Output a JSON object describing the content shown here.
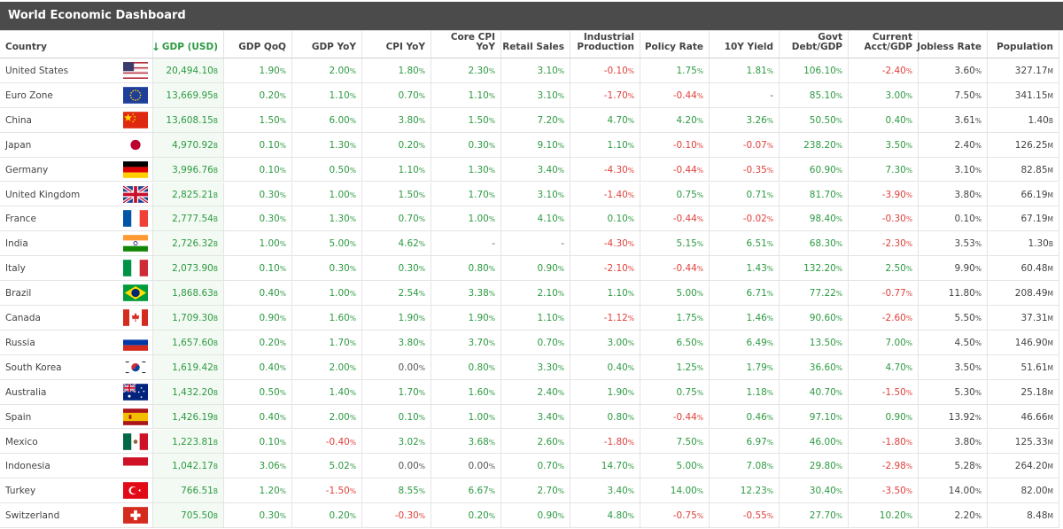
{
  "header": {
    "title": "World Economic Dashboard"
  },
  "table": {
    "columns": [
      [
        "Country"
      ],
      [
        "GDP (USD)"
      ],
      [
        "GDP QoQ"
      ],
      [
        "GDP YoY"
      ],
      [
        "CPI YoY"
      ],
      [
        "Core CPI",
        "YoY"
      ],
      [
        "Retail Sales"
      ],
      [
        "Industrial",
        "Production"
      ],
      [
        "Policy Rate"
      ],
      [
        "10Y Yield"
      ],
      [
        "Govt",
        "Debt/GDP"
      ],
      [
        "Current",
        "Acct/GDP"
      ],
      [
        "Jobless Rate"
      ],
      [
        "Population"
      ]
    ],
    "rows": [
      [
        "United States",
        "20,494.10B",
        "1.90%",
        "2.00%",
        "1.80%",
        "2.30%",
        "3.10%",
        "-0.10%",
        "1.75%",
        "1.81%",
        "106.10%",
        "-2.40%",
        "3.60%",
        "327.17M"
      ],
      [
        "Euro Zone",
        "13,669.95B",
        "0.20%",
        "1.10%",
        "0.70%",
        "1.10%",
        "3.10%",
        "-1.70%",
        "-0.44%",
        "-",
        "85.10%",
        "3.00%",
        "7.50%",
        "341.15M"
      ],
      [
        "China",
        "13,608.15B",
        "1.50%",
        "6.00%",
        "3.80%",
        "1.50%",
        "7.20%",
        "4.70%",
        "4.20%",
        "3.26%",
        "50.50%",
        "0.40%",
        "3.61%",
        "1.40B"
      ],
      [
        "Japan",
        "4,970.92B",
        "0.10%",
        "1.30%",
        "0.20%",
        "0.30%",
        "9.10%",
        "1.10%",
        "-0.10%",
        "-0.07%",
        "238.20%",
        "3.50%",
        "2.40%",
        "126.25M"
      ],
      [
        "Germany",
        "3,996.76B",
        "0.10%",
        "0.50%",
        "1.10%",
        "1.30%",
        "3.40%",
        "-4.30%",
        "-0.44%",
        "-0.35%",
        "60.90%",
        "7.30%",
        "3.10%",
        "82.85M"
      ],
      [
        "United Kingdom",
        "2,825.21B",
        "0.30%",
        "1.00%",
        "1.50%",
        "1.70%",
        "3.10%",
        "-1.40%",
        "0.75%",
        "0.71%",
        "81.70%",
        "-3.90%",
        "3.80%",
        "66.19M"
      ],
      [
        "France",
        "2,777.54B",
        "0.30%",
        "1.30%",
        "0.70%",
        "1.00%",
        "4.10%",
        "0.10%",
        "-0.44%",
        "-0.02%",
        "98.40%",
        "-0.30%",
        "0.10%",
        "67.19M"
      ],
      [
        "India",
        "2,726.32B",
        "1.00%",
        "5.00%",
        "4.62%",
        "-",
        "-",
        "-4.30%",
        "5.15%",
        "6.51%",
        "68.30%",
        "-2.30%",
        "3.53%",
        "1.30B"
      ],
      [
        "Italy",
        "2,073.90B",
        "0.10%",
        "0.30%",
        "0.30%",
        "0.80%",
        "0.90%",
        "-2.10%",
        "-0.44%",
        "1.43%",
        "132.20%",
        "2.50%",
        "9.90%",
        "60.48M"
      ],
      [
        "Brazil",
        "1,868.63B",
        "0.40%",
        "1.00%",
        "2.54%",
        "3.38%",
        "2.10%",
        "1.10%",
        "5.00%",
        "6.71%",
        "77.22%",
        "-0.77%",
        "11.80%",
        "208.49M"
      ],
      [
        "Canada",
        "1,709.30B",
        "0.90%",
        "1.60%",
        "1.90%",
        "1.90%",
        "1.10%",
        "-1.12%",
        "1.75%",
        "1.46%",
        "90.60%",
        "-2.60%",
        "5.50%",
        "37.31M"
      ],
      [
        "Russia",
        "1,657.60B",
        "0.20%",
        "1.70%",
        "3.80%",
        "3.70%",
        "0.70%",
        "3.00%",
        "6.50%",
        "6.49%",
        "13.50%",
        "7.00%",
        "4.50%",
        "146.90M"
      ],
      [
        "South Korea",
        "1,619.42B",
        "0.40%",
        "2.00%",
        "0.00%",
        "0.80%",
        "3.30%",
        "0.40%",
        "1.25%",
        "1.79%",
        "36.60%",
        "4.70%",
        "3.50%",
        "51.61M"
      ],
      [
        "Australia",
        "1,432.20B",
        "0.50%",
        "1.40%",
        "1.70%",
        "1.60%",
        "2.40%",
        "1.90%",
        "0.75%",
        "1.18%",
        "40.70%",
        "-1.50%",
        "5.30%",
        "25.18M"
      ],
      [
        "Spain",
        "1,426.19B",
        "0.40%",
        "2.00%",
        "0.10%",
        "1.00%",
        "3.40%",
        "0.80%",
        "-0.44%",
        "0.46%",
        "97.10%",
        "0.90%",
        "13.92%",
        "46.66M"
      ],
      [
        "Mexico",
        "1,223.81B",
        "0.10%",
        "-0.40%",
        "3.02%",
        "3.68%",
        "2.60%",
        "-1.80%",
        "7.50%",
        "6.97%",
        "46.00%",
        "-1.80%",
        "3.80%",
        "125.33M"
      ],
      [
        "Indonesia",
        "1,042.17B",
        "3.06%",
        "5.02%",
        "0.00%",
        "0.00%",
        "0.70%",
        "14.70%",
        "5.00%",
        "7.08%",
        "29.80%",
        "-2.98%",
        "5.28%",
        "264.20M"
      ],
      [
        "Turkey",
        "766.51B",
        "1.20%",
        "-1.50%",
        "8.55%",
        "6.67%",
        "2.70%",
        "3.40%",
        "14.00%",
        "12.23%",
        "30.40%",
        "-3.50%",
        "14.00%",
        "82.00M"
      ],
      [
        "Switzerland",
        "705.50B",
        "0.30%",
        "0.20%",
        "-0.30%",
        "0.20%",
        "0.90%",
        "4.80%",
        "-0.75%",
        "-0.55%",
        "27.70%",
        "10.20%",
        "2.20%",
        "8.48M"
      ]
    ]
  }
}
